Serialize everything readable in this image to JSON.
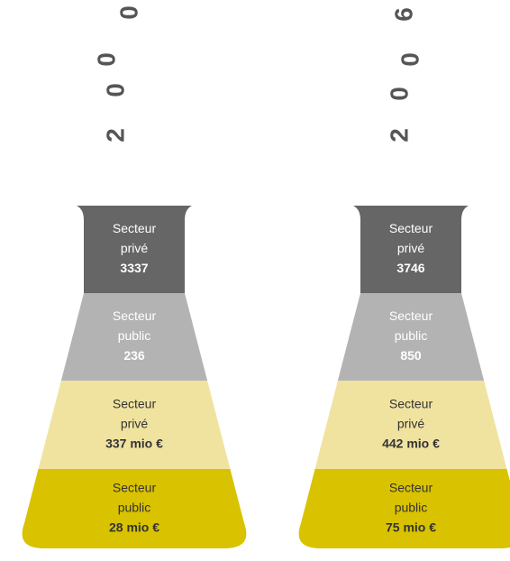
{
  "flasks": [
    {
      "year_digits": [
        "2",
        "0",
        "0",
        "0"
      ],
      "layers": [
        {
          "line1": "Secteur",
          "line2": "privé",
          "value": "3337"
        },
        {
          "line1": "Secteur",
          "line2": "public",
          "value": "236"
        },
        {
          "line1": "Secteur",
          "line2": "privé",
          "value": "337 mio €"
        },
        {
          "line1": "Secteur",
          "line2": "public",
          "value": "28 mio €"
        }
      ]
    },
    {
      "year_digits": [
        "2",
        "0",
        "0",
        "6"
      ],
      "layers": [
        {
          "line1": "Secteur",
          "line2": "privé",
          "value": "3746"
        },
        {
          "line1": "Secteur",
          "line2": "public",
          "value": "850"
        },
        {
          "line1": "Secteur",
          "line2": "privé",
          "value": "442 mio €"
        },
        {
          "line1": "Secteur",
          "line2": "public",
          "value": "75 mio €"
        }
      ]
    }
  ]
}
